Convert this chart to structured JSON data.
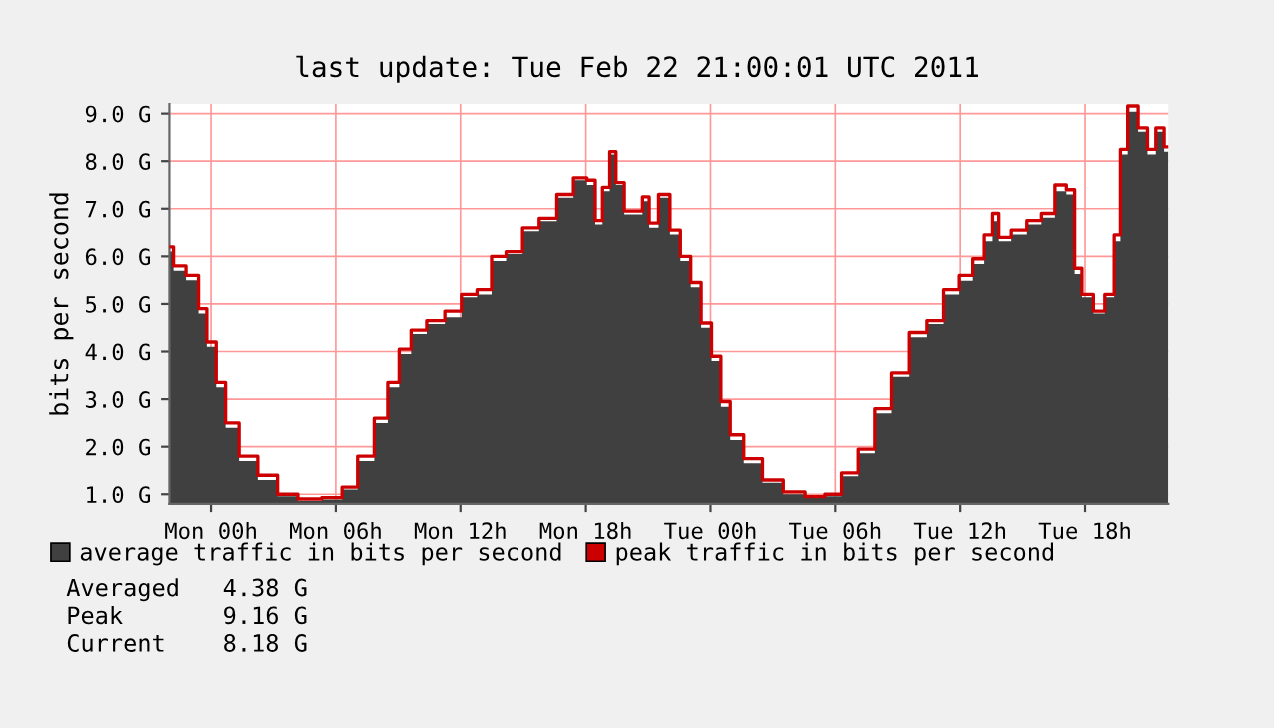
{
  "chart_data": {
    "type": "area",
    "title": "last update: Tue Feb 22 21:00:01 UTC 2011",
    "ylabel": "bits per second",
    "x": [
      "2011-02-20T22:00",
      "2011-02-20T22:24",
      "2011-02-20T23:12",
      "2011-02-20T23:36",
      "2011-02-21T00:00",
      "2011-02-21T00:30",
      "2011-02-21T00:54",
      "2011-02-21T01:48",
      "2011-02-21T02:42",
      "2011-02-21T03:42",
      "2011-02-21T04:39",
      "2011-02-21T06:00",
      "2011-02-21T06:36",
      "2011-02-21T07:30",
      "2011-02-21T08:12",
      "2011-02-21T08:48",
      "2011-02-21T09:18",
      "2011-02-21T09:57",
      "2011-02-21T10:48",
      "2011-02-21T11:42",
      "2011-02-21T12:24",
      "2011-02-21T13:12",
      "2011-02-21T13:48",
      "2011-02-21T14:36",
      "2011-02-21T15:18",
      "2011-02-21T16:12",
      "2011-02-21T17:00",
      "2011-02-21T17:48",
      "2011-02-21T18:18",
      "2011-02-21T18:36",
      "2011-02-21T19:00",
      "2011-02-21T19:18",
      "2011-02-21T19:36",
      "2011-02-21T20:06",
      "2011-02-21T20:33",
      "2011-02-21T20:54",
      "2011-02-21T21:12",
      "2011-02-21T21:48",
      "2011-02-21T22:18",
      "2011-02-21T22:48",
      "2011-02-21T23:18",
      "2011-02-21T23:48",
      "2011-02-22T00:18",
      "2011-02-22T00:42",
      "2011-02-22T01:12",
      "2011-02-22T02:00",
      "2011-02-22T03:00",
      "2011-02-22T04:00",
      "2011-02-22T05:06",
      "2011-02-22T05:54",
      "2011-02-22T06:42",
      "2011-02-22T07:30",
      "2011-02-22T08:18",
      "2011-02-22T09:06",
      "2011-02-22T10:00",
      "2011-02-22T10:48",
      "2011-02-22T11:36",
      "2011-02-22T12:18",
      "2011-02-22T12:54",
      "2011-02-22T13:24",
      "2011-02-22T13:42",
      "2011-02-22T14:00",
      "2011-02-22T14:54",
      "2011-02-22T15:30",
      "2011-02-22T16:18",
      "2011-02-22T16:48",
      "2011-02-22T17:24",
      "2011-02-22T17:36",
      "2011-02-22T18:06",
      "2011-02-22T18:42",
      "2011-02-22T19:12",
      "2011-02-22T19:36",
      "2011-02-22T19:48",
      "2011-02-22T20:18",
      "2011-02-22T20:48",
      "2011-02-22T21:12",
      "2011-02-22T21:36",
      "2011-02-22T22:00"
    ],
    "series": [
      {
        "name": "average traffic in bits per second",
        "color": "#404040",
        "values": [
          6.1,
          5.7,
          5.5,
          4.8,
          4.1,
          3.25,
          2.4,
          1.7,
          1.3,
          0.96,
          0.86,
          0.89,
          1.1,
          1.7,
          2.5,
          3.25,
          3.95,
          4.37,
          4.58,
          4.72,
          5.14,
          5.2,
          5.9,
          6.05,
          6.53,
          6.74,
          7.23,
          7.6,
          7.5,
          6.67,
          7.37,
          8.14,
          7.5,
          6.88,
          6.88,
          7.16,
          6.6,
          7.23,
          6.46,
          5.9,
          5.35,
          4.5,
          3.8,
          2.84,
          2.14,
          1.65,
          1.24,
          1.0,
          0.92,
          0.96,
          1.38,
          1.86,
          2.7,
          3.47,
          4.3,
          4.58,
          5.2,
          5.49,
          5.84,
          6.32,
          6.74,
          6.32,
          6.46,
          6.67,
          6.81,
          7.37,
          7.3,
          5.63,
          5.14,
          4.8,
          5.14,
          6.32,
          8.14,
          9.04,
          8.62,
          8.14,
          8.62,
          8.2
        ]
      },
      {
        "name": "peak traffic in bits per second",
        "type": "step",
        "color": "#cc0000",
        "values": [
          6.2,
          5.8,
          5.6,
          4.9,
          4.2,
          3.35,
          2.5,
          1.8,
          1.4,
          1.0,
          0.9,
          0.93,
          1.15,
          1.8,
          2.6,
          3.35,
          4.05,
          4.45,
          4.65,
          4.85,
          5.2,
          5.3,
          6.0,
          6.1,
          6.6,
          6.8,
          7.3,
          7.65,
          7.6,
          6.75,
          7.45,
          8.2,
          7.55,
          6.95,
          6.95,
          7.25,
          6.7,
          7.3,
          6.55,
          6.0,
          5.45,
          4.6,
          3.9,
          2.95,
          2.25,
          1.75,
          1.3,
          1.05,
          0.95,
          1.0,
          1.45,
          1.95,
          2.8,
          3.55,
          4.4,
          4.65,
          5.3,
          5.6,
          5.95,
          6.45,
          6.9,
          6.4,
          6.55,
          6.75,
          6.9,
          7.5,
          7.4,
          5.75,
          5.2,
          4.85,
          5.2,
          6.45,
          8.25,
          9.16,
          8.7,
          8.25,
          8.7,
          8.3
        ]
      }
    ],
    "xlim": [
      "2011-02-20T22:00",
      "2011-02-22T22:00"
    ],
    "xticks": [
      {
        "value": "2011-02-21T00:00",
        "label": "Mon 00h"
      },
      {
        "value": "2011-02-21T06:00",
        "label": "Mon 06h"
      },
      {
        "value": "2011-02-21T12:00",
        "label": "Mon 12h"
      },
      {
        "value": "2011-02-21T18:00",
        "label": "Mon 18h"
      },
      {
        "value": "2011-02-22T00:00",
        "label": "Tue 00h"
      },
      {
        "value": "2011-02-22T06:00",
        "label": "Tue 06h"
      },
      {
        "value": "2011-02-22T12:00",
        "label": "Tue 12h"
      },
      {
        "value": "2011-02-22T18:00",
        "label": "Tue 18h"
      }
    ],
    "ylim": [
      0.8,
      9.2
    ],
    "yticks": [
      {
        "value": 1,
        "label": "1.0 G"
      },
      {
        "value": 2,
        "label": "2.0 G"
      },
      {
        "value": 3,
        "label": "3.0 G"
      },
      {
        "value": 4,
        "label": "4.0 G"
      },
      {
        "value": 5,
        "label": "5.0 G"
      },
      {
        "value": 6,
        "label": "6.0 G"
      },
      {
        "value": 7,
        "label": "7.0 G"
      },
      {
        "value": 8,
        "label": "8.0 G"
      },
      {
        "value": 9,
        "label": "9.0 G"
      }
    ],
    "grid": true,
    "legend": "bottom left",
    "annotations": [
      "Averaged   4.38 G",
      "Peak       9.16 G",
      "Current    8.18 G"
    ]
  }
}
